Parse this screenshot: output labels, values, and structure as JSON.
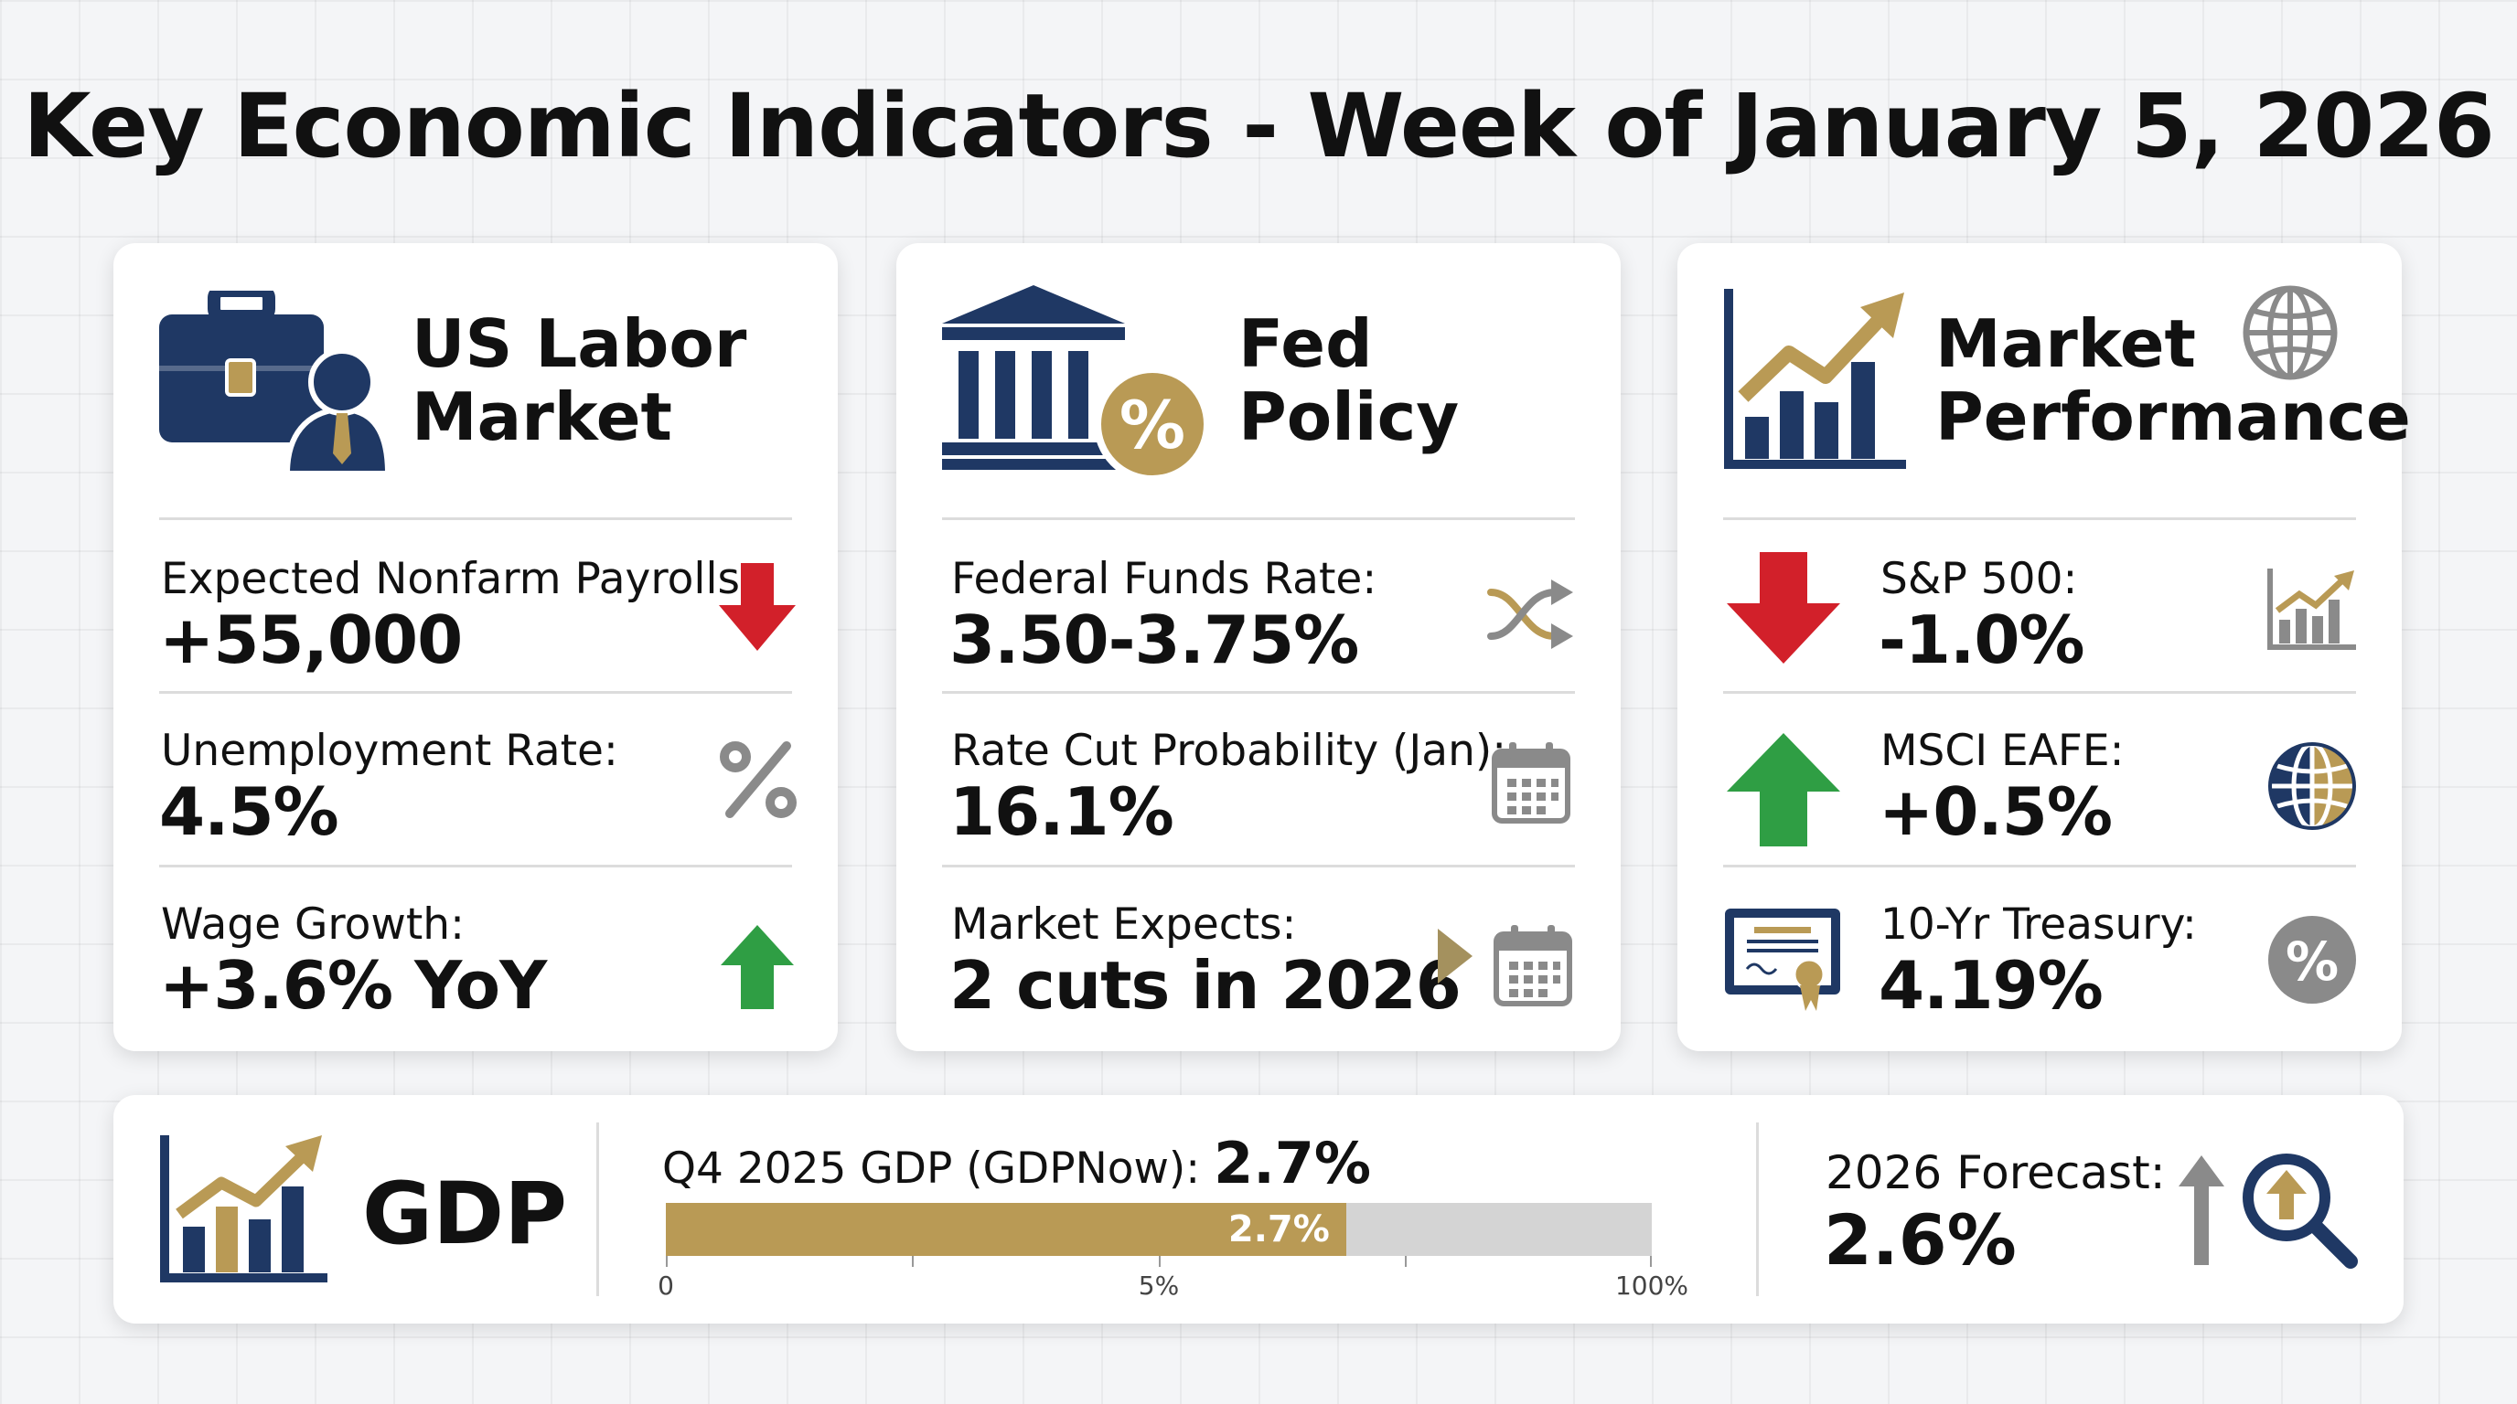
{
  "title": "Key Economic Indicators - Week of January 5, 2026",
  "colors": {
    "navy": "#1f3864",
    "gold": "#b99a55",
    "red": "#d2202a",
    "green": "#2f9e44",
    "gray": "#8a8a8a"
  },
  "labor": {
    "title": "US Labor\nMarket",
    "icon": "briefcase-person-icon",
    "rows": [
      {
        "label": "Expected Nonfarm Payrolls:",
        "value": "+55,000",
        "icon": "red-down-arrow-icon"
      },
      {
        "label": "Unemployment Rate:",
        "value": "4.5%",
        "icon": "percent-icon"
      },
      {
        "label": "Wage Growth:",
        "value": "+3.6% YoY",
        "icon": "green-up-arrow-icon"
      }
    ]
  },
  "fed": {
    "title": "Fed\nPolicy",
    "icon": "bank-percent-icon",
    "rows": [
      {
        "label": "Federal Funds Rate:",
        "value": "3.50-3.75%",
        "icon": "shuffle-arrows-icon"
      },
      {
        "label": "Rate Cut Probability (Jan):",
        "value": "16.1%",
        "icon": "calendar-icon"
      },
      {
        "label": "Market Expects:",
        "value": "2 cuts in 2026",
        "icon": "play-calendar-icon"
      }
    ]
  },
  "market": {
    "title": "Market\nPerformance",
    "icon": "rising-chart-icon",
    "rows": [
      {
        "label": "S&P 500:",
        "value": "-1.0%",
        "icon": "red-down-arrow-icon"
      },
      {
        "label": "MSCI EAFE:",
        "value": "+0.5%",
        "icon": "green-up-arrow-icon"
      },
      {
        "label": "10-Yr Treasury:",
        "value": "4.19%",
        "icon": "certificate-icon"
      }
    ]
  },
  "gdp": {
    "title": "GDP",
    "label": "Q4 2025 GDP (GDPNow):",
    "value": "2.7%",
    "bar_label": "2.7%",
    "bar_value": 2.7,
    "bar_fill_fraction": 0.69,
    "ticks": [
      "0",
      "5%",
      "100%"
    ],
    "forecast_label": "2026 Forecast:",
    "forecast_value": "2.6%"
  }
}
